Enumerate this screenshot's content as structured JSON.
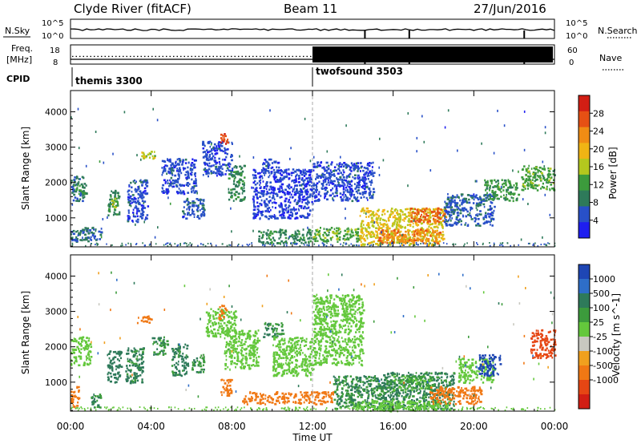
{
  "header": {
    "station": "Clyde River (fitACF)",
    "beam": "Beam 11",
    "date": "27/Jun/2016"
  },
  "noise_panel": {
    "left_label": "N.Sky",
    "right_label": "N.Search",
    "left_ticks": [
      "10^5",
      "10^0"
    ],
    "right_ticks": [
      "10^5",
      "10^0"
    ]
  },
  "freq_panel": {
    "left_label_1": "Freq.",
    "left_label_2": "[MHz]",
    "right_label": "Nave",
    "left_ticks": [
      "18",
      "8"
    ],
    "right_ticks": [
      "60",
      "0"
    ],
    "freq_mhz": 10.5,
    "nave_before_switch": 24,
    "nave_after_switch": 55
  },
  "cpid_panel": {
    "label": "CPID",
    "programs": [
      {
        "name": "themis 3300",
        "start_hour": 0
      },
      {
        "name": "twofsound 3503",
        "start_hour": 12
      }
    ]
  },
  "colors": {
    "power": [
      "#1e1ef0",
      "#2850c8",
      "#2e7a5a",
      "#3c9b3c",
      "#b4c81e",
      "#f0b414",
      "#f08c14",
      "#e65014",
      "#d21e14"
    ],
    "velocity": [
      "#1e46b4",
      "#2e6ec8",
      "#2e7a5a",
      "#3c9b3c",
      "#64c83c",
      "#c8c8c0",
      "#f0a01e",
      "#f07814",
      "#e64614",
      "#d21e14"
    ]
  },
  "chart_data": [
    {
      "type": "heatmap",
      "name": "power",
      "ylabel": "Slant Range [km]",
      "yticks": [
        "1000",
        "2000",
        "3000",
        "4000"
      ],
      "ylim": [
        180,
        4600
      ],
      "xlim": [
        0,
        24
      ],
      "colorbar_label": "Power [dB]",
      "colorbar_ticks": [
        "4",
        "8",
        "12",
        "16",
        "20",
        "24",
        "28"
      ],
      "colorbar_range": [
        0,
        32
      ],
      "features": [
        {
          "t0": 0.0,
          "t1": 0.7,
          "r0": 1500,
          "r1": 2200,
          "v": 8
        },
        {
          "t0": 0.1,
          "t1": 0.8,
          "r0": 1700,
          "r1": 1950,
          "v": 12
        },
        {
          "t0": 0.0,
          "t1": 1.5,
          "r0": 350,
          "r1": 750,
          "v": 8
        },
        {
          "t0": 1.8,
          "t1": 2.4,
          "r0": 1100,
          "r1": 1800,
          "v": 10
        },
        {
          "t0": 2.0,
          "t1": 2.3,
          "r0": 1300,
          "r1": 1600,
          "v": 16
        },
        {
          "t0": 2.8,
          "t1": 3.8,
          "r0": 900,
          "r1": 2100,
          "v": 5
        },
        {
          "t0": 3.4,
          "t1": 4.2,
          "r0": 2700,
          "r1": 2900,
          "v": 16
        },
        {
          "t0": 4.5,
          "t1": 6.2,
          "r0": 1700,
          "r1": 2700,
          "v": 5
        },
        {
          "t0": 5.5,
          "t1": 6.6,
          "r0": 1000,
          "r1": 1600,
          "v": 6
        },
        {
          "t0": 6.5,
          "t1": 8.0,
          "r0": 2200,
          "r1": 3200,
          "v": 5
        },
        {
          "t0": 7.4,
          "t1": 7.8,
          "r0": 3100,
          "r1": 3400,
          "v": 28
        },
        {
          "t0": 7.8,
          "t1": 8.6,
          "r0": 1500,
          "r1": 2500,
          "v": 10
        },
        {
          "t0": 9.5,
          "t1": 10.3,
          "r0": 2300,
          "r1": 2700,
          "v": 5
        },
        {
          "t0": 9.0,
          "t1": 12.0,
          "r0": 1000,
          "r1": 2400,
          "v": 4
        },
        {
          "t0": 9.3,
          "t1": 12.0,
          "r0": 300,
          "r1": 700,
          "v": 10
        },
        {
          "t0": 12.0,
          "t1": 14.3,
          "r0": 350,
          "r1": 750,
          "v": 13
        },
        {
          "t0": 12.0,
          "t1": 15.0,
          "r0": 1500,
          "r1": 2600,
          "v": 5
        },
        {
          "t0": 14.3,
          "t1": 18.5,
          "r0": 250,
          "r1": 1300,
          "v": 18
        },
        {
          "t0": 15.2,
          "t1": 18.3,
          "r0": 300,
          "r1": 700,
          "v": 24
        },
        {
          "t0": 16.8,
          "t1": 18.6,
          "r0": 900,
          "r1": 1300,
          "v": 26
        },
        {
          "t0": 18.5,
          "t1": 21.0,
          "r0": 800,
          "r1": 1700,
          "v": 6
        },
        {
          "t0": 20.5,
          "t1": 22.2,
          "r0": 1500,
          "r1": 2100,
          "v": 12
        },
        {
          "t0": 22.3,
          "t1": 24.0,
          "r0": 1800,
          "r1": 2500,
          "v": 13
        }
      ]
    },
    {
      "type": "heatmap",
      "name": "velocity",
      "ylabel": "Slant Range [km]",
      "yticks": [
        "1000",
        "2000",
        "3000",
        "4000"
      ],
      "ylim": [
        180,
        4600
      ],
      "xlim": [
        0,
        24
      ],
      "colorbar_label": "Velocity [m s^-1]",
      "colorbar_ticks": [
        "1000",
        "500",
        "100",
        "25",
        "-25",
        "-100",
        "-500",
        "-1000"
      ],
      "features": [
        {
          "t0": 0.0,
          "t1": 1.0,
          "r0": 1500,
          "r1": 2300,
          "v": 0
        },
        {
          "t0": 0.0,
          "t1": 0.4,
          "r0": 300,
          "r1": 900,
          "v": -300
        },
        {
          "t0": 1.0,
          "t1": 1.5,
          "r0": 300,
          "r1": 700,
          "v": 60
        },
        {
          "t0": 1.8,
          "t1": 2.5,
          "r0": 1000,
          "r1": 1900,
          "v": 80
        },
        {
          "t0": 2.7,
          "t1": 3.6,
          "r0": 1000,
          "r1": 2000,
          "v": 70
        },
        {
          "t0": 3.2,
          "t1": 4.0,
          "r0": 2700,
          "r1": 2900,
          "v": -150
        },
        {
          "t0": 4.0,
          "t1": 4.8,
          "r0": 1800,
          "r1": 2300,
          "v": 60
        },
        {
          "t0": 5.0,
          "t1": 5.8,
          "r0": 1200,
          "r1": 2100,
          "v": 70
        },
        {
          "t0": 6.0,
          "t1": 6.6,
          "r0": 1300,
          "r1": 1800,
          "v": 60
        },
        {
          "t0": 6.7,
          "t1": 8.2,
          "r0": 2300,
          "r1": 3100,
          "v": 0
        },
        {
          "t0": 7.3,
          "t1": 7.7,
          "r0": 2800,
          "r1": 3200,
          "v": -400
        },
        {
          "t0": 7.4,
          "t1": 8.0,
          "r0": 600,
          "r1": 1100,
          "v": -200
        },
        {
          "t0": 7.6,
          "t1": 9.3,
          "r0": 1400,
          "r1": 2500,
          "v": 0
        },
        {
          "t0": 9.5,
          "t1": 10.5,
          "r0": 2300,
          "r1": 2700,
          "v": 60
        },
        {
          "t0": 10.0,
          "t1": 12.0,
          "r0": 1200,
          "r1": 2300,
          "v": 0
        },
        {
          "t0": 8.5,
          "t1": 13.0,
          "r0": 400,
          "r1": 750,
          "v": -200
        },
        {
          "t0": 12.0,
          "t1": 14.5,
          "r0": 1500,
          "r1": 3500,
          "v": 0
        },
        {
          "t0": 13.0,
          "t1": 16.0,
          "r0": 250,
          "r1": 1200,
          "v": 60
        },
        {
          "t0": 15.5,
          "t1": 19.0,
          "r0": 250,
          "r1": 1300,
          "v": 70
        },
        {
          "t0": 14.0,
          "t1": 18.8,
          "r0": 200,
          "r1": 500,
          "v": 0
        },
        {
          "t0": 16.0,
          "t1": 18.0,
          "r0": 800,
          "r1": 1200,
          "v": 30
        },
        {
          "t0": 17.8,
          "t1": 20.4,
          "r0": 400,
          "r1": 900,
          "v": -150
        },
        {
          "t0": 19.2,
          "t1": 21.0,
          "r0": 1000,
          "r1": 1700,
          "v": 0
        },
        {
          "t0": 20.2,
          "t1": 21.3,
          "r0": 1200,
          "r1": 1800,
          "v": 600
        },
        {
          "t0": 22.8,
          "t1": 24.0,
          "r0": 1700,
          "r1": 2500,
          "v": -700
        }
      ]
    }
  ],
  "xaxis": {
    "ticks": [
      "00:00",
      "04:00",
      "08:00",
      "12:00",
      "16:00",
      "20:00",
      "00:00"
    ],
    "label": "Time UT"
  }
}
